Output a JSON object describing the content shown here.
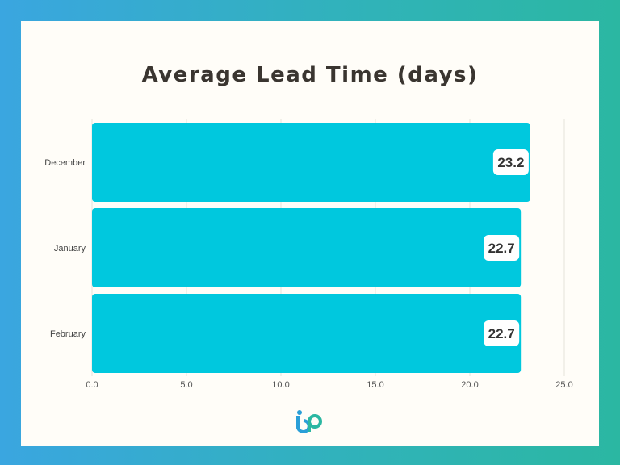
{
  "chart_data": {
    "type": "bar",
    "orientation": "horizontal",
    "title": "Average Lead Time (days)",
    "xlabel": "",
    "ylabel": "",
    "categories": [
      "December",
      "January",
      "February"
    ],
    "values": [
      23.2,
      22.7,
      22.7
    ],
    "value_labels": [
      "23.2",
      "22.7",
      "22.7"
    ],
    "xlim": [
      0,
      25
    ],
    "x_ticks": [
      "0.0",
      "5.0",
      "10.0",
      "15.0",
      "20.0",
      "25.0"
    ],
    "grid": "vertical",
    "bar_color": "#00c8de"
  },
  "logo": {
    "icon": "bp-logo-icon"
  }
}
